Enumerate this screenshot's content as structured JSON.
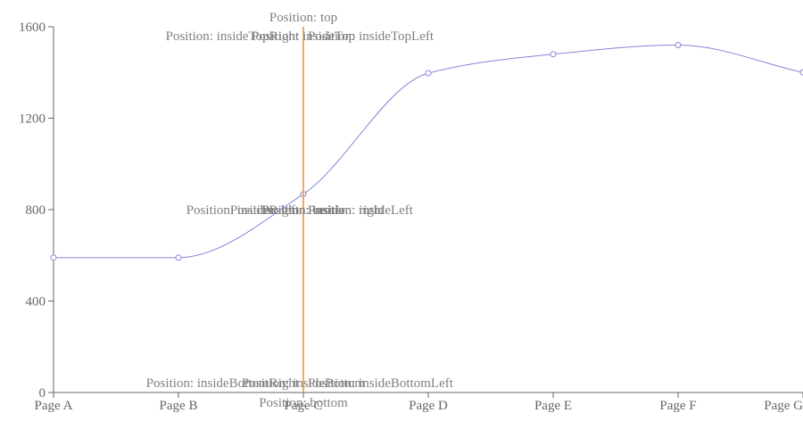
{
  "chart_data": {
    "type": "line",
    "title": "",
    "xlabel": "",
    "ylabel": "",
    "categories": [
      "Page A",
      "Page B",
      "Page C",
      "Page D",
      "Page E",
      "Page F",
      "Page G"
    ],
    "series": [
      {
        "name": "",
        "values": [
          590,
          590,
          868,
          1397,
          1480,
          1520,
          1400
        ],
        "color": "#8884d8"
      }
    ],
    "y_ticks": [
      "0",
      "400",
      "800",
      "1200",
      "1600"
    ],
    "ylim": [
      0,
      1600
    ],
    "reference_line": {
      "x": "Page C",
      "color": "#f0a868",
      "label_anchor_value": 800,
      "labels": [
        "Position: top",
        "Position: insideTopRight",
        "Position: insideTop",
        "Position: insideTopLeft",
        "Position: left",
        "Position: insideLeft",
        "Position: center",
        "Position: inside",
        "Position: insideRight",
        "Position: right",
        "Position: insideBottomRight",
        "Position: insideBottom",
        "Position: insideBottomLeft",
        "Position: bottom"
      ]
    },
    "grid": false,
    "axis_color": "#666666"
  }
}
